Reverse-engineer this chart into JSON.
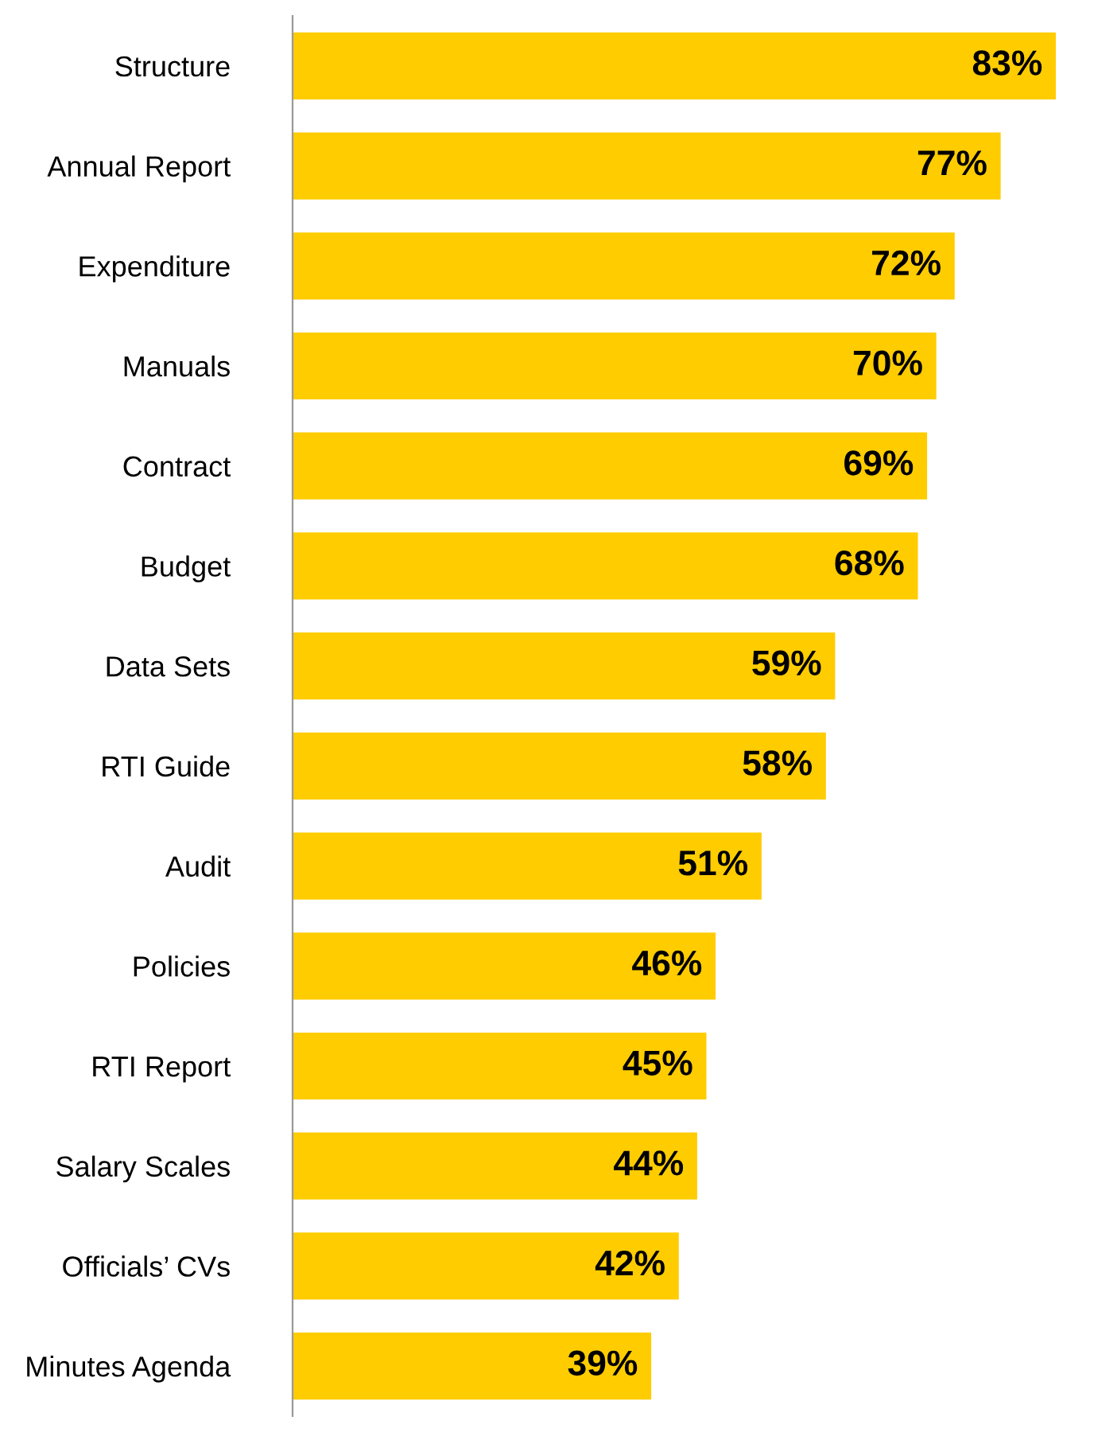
{
  "chart_data": {
    "type": "bar",
    "orientation": "horizontal",
    "categories": [
      "Structure",
      "Annual Report",
      "Expenditure",
      "Manuals",
      "Contract",
      "Budget",
      "Data Sets",
      "RTI Guide",
      "Audit",
      "Policies",
      "RTI Report",
      "Salary Scales",
      "Officials’ CVs",
      "Minutes Agenda"
    ],
    "values": [
      83,
      77,
      72,
      70,
      69,
      68,
      59,
      58,
      51,
      46,
      45,
      44,
      42,
      39
    ],
    "value_labels": [
      "83%",
      "77%",
      "72%",
      "70%",
      "69%",
      "68%",
      "59%",
      "58%",
      "51%",
      "46%",
      "45%",
      "44%",
      "42%",
      "39%"
    ],
    "color": "#ffcc00",
    "tick_labels": "y",
    "grid": false
  }
}
